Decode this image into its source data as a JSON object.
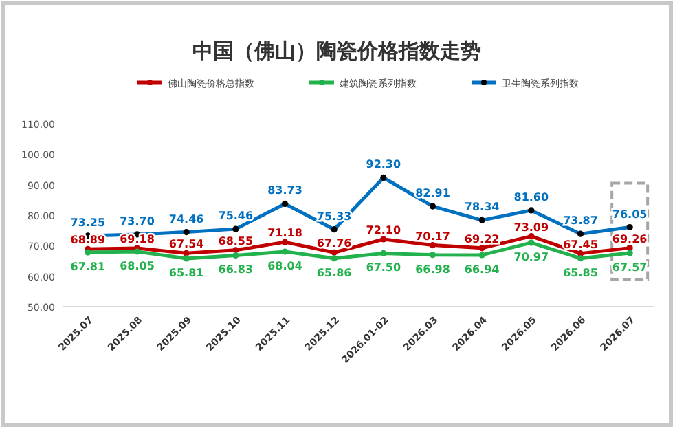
{
  "chart_data": {
    "type": "line",
    "title": "中国（佛山）陶瓷价格指数走势",
    "categories": [
      "2025.07",
      "2025.08",
      "2025.09",
      "2025.10",
      "2025.11",
      "2025.12",
      "2026.01-02",
      "2026.03",
      "2026.04",
      "2026.05",
      "2026.06",
      "2026.07"
    ],
    "series": [
      {
        "name": "佛山陶瓷价格总指数",
        "color": "#c00000",
        "values": [
          68.89,
          69.18,
          67.54,
          68.55,
          71.18,
          67.76,
          72.1,
          70.17,
          69.22,
          73.09,
          67.45,
          69.26
        ],
        "value_labels": [
          "68.89",
          "69.18",
          "67.54",
          "68.55",
          "71.18",
          "67.76",
          "72.10",
          "70.17",
          "69.22",
          "73.09",
          "67.45",
          "69.26"
        ]
      },
      {
        "name": "建筑陶瓷系列指数",
        "color": "#22b14c",
        "values": [
          67.81,
          68.05,
          65.81,
          66.83,
          68.04,
          65.86,
          67.5,
          66.98,
          66.94,
          70.97,
          65.85,
          67.57
        ],
        "value_labels": [
          "67.81",
          "68.05",
          "65.81",
          "66.83",
          "68.04",
          "65.86",
          "67.50",
          "66.98",
          "66.94",
          "70.97",
          "65.85",
          "67.57"
        ]
      },
      {
        "name": "卫生陶瓷系列指数",
        "color": "#0070c0",
        "values": [
          73.25,
          73.7,
          74.46,
          75.46,
          83.73,
          75.33,
          92.3,
          82.91,
          78.34,
          81.6,
          73.87,
          76.05
        ],
        "value_labels": [
          "73.25",
          "73.70",
          "74.46",
          "75.46",
          "83.73",
          "75.33",
          "92.30",
          "82.91",
          "78.34",
          "81.60",
          "73.87",
          "76.05"
        ]
      }
    ],
    "ylim": [
      50,
      110
    ],
    "yticks": [
      {
        "value": 50,
        "label": "50.00"
      },
      {
        "value": 60,
        "label": "60.00"
      },
      {
        "value": 70,
        "label": "70.00"
      },
      {
        "value": 80,
        "label": "80.00"
      },
      {
        "value": 90,
        "label": "90.00"
      },
      {
        "value": 100,
        "label": "100.00"
      },
      {
        "value": 110,
        "label": "110.00"
      }
    ],
    "legend": "top",
    "marker": "circle",
    "line_style": "solid",
    "grid": false
  }
}
